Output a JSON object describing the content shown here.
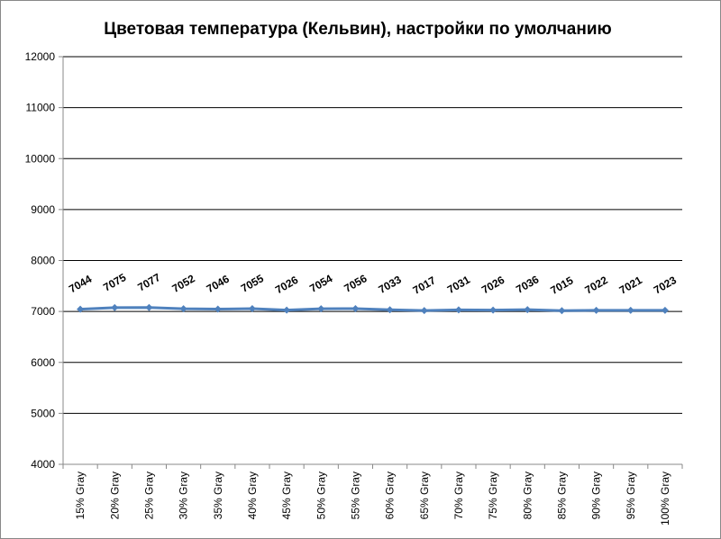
{
  "chart_data": {
    "type": "line",
    "title": "Цветовая температура (Кельвин), настройки по умолчанию",
    "categories": [
      "15% Gray",
      "20% Gray",
      "25% Gray",
      "30% Gray",
      "35% Gray",
      "40% Gray",
      "45% Gray",
      "50% Gray",
      "55% Gray",
      "60% Gray",
      "65% Gray",
      "70% Gray",
      "75% Gray",
      "80% Gray",
      "85% Gray",
      "90% Gray",
      "95% Gray",
      "100% Gray"
    ],
    "values": [
      7044,
      7075,
      7077,
      7052,
      7046,
      7055,
      7026,
      7054,
      7056,
      7033,
      7017,
      7031,
      7026,
      7036,
      7015,
      7022,
      7021,
      7023
    ],
    "color": "#4f81bd",
    "ylim": [
      4000,
      12000
    ],
    "yticks": [
      4000,
      5000,
      6000,
      7000,
      8000,
      9000,
      10000,
      11000,
      12000
    ],
    "grid": true
  }
}
